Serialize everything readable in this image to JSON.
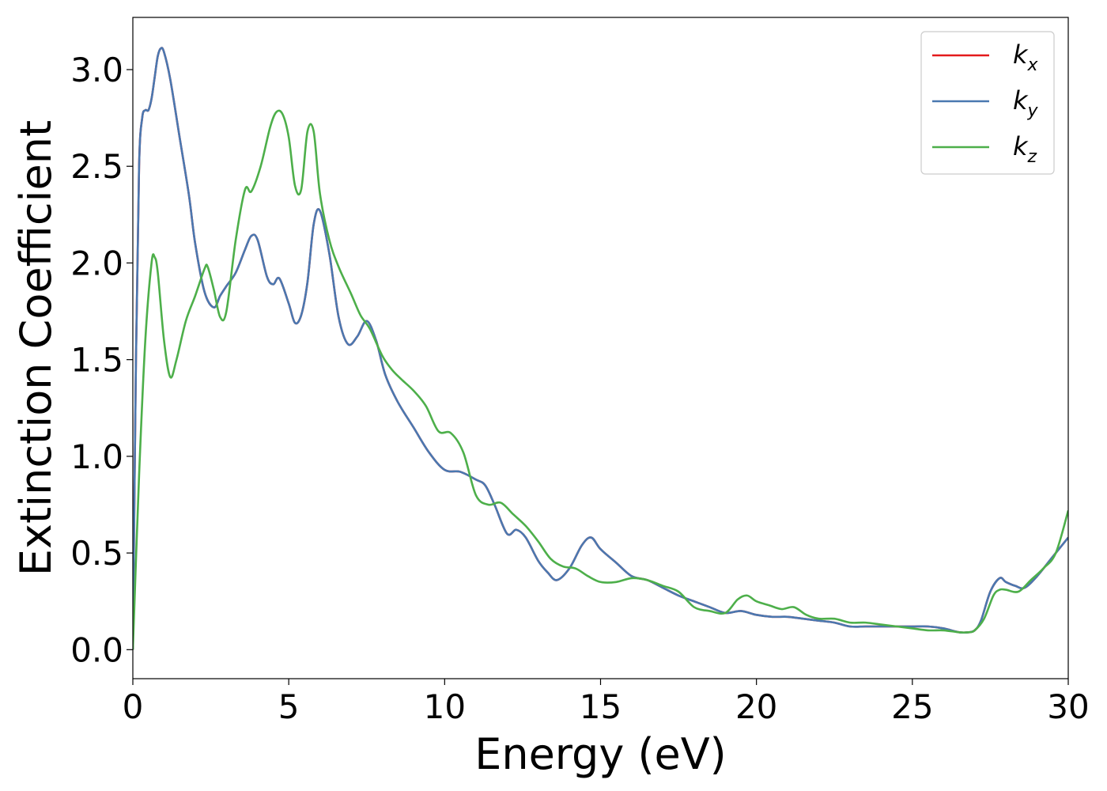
{
  "chart_data": {
    "type": "line",
    "title": "",
    "xlabel": "Energy (eV)",
    "ylabel": "Extinction Coefficient",
    "xlim": [
      0,
      30
    ],
    "ylim": [
      -0.15,
      3.27
    ],
    "xticks": [
      0,
      5,
      10,
      15,
      20,
      25,
      30
    ],
    "xtick_labels": [
      "0",
      "5",
      "10",
      "15",
      "20",
      "25",
      "30"
    ],
    "yticks": [
      0.0,
      0.5,
      1.0,
      1.5,
      2.0,
      2.5,
      3.0
    ],
    "ytick_labels": [
      "0.0",
      "0.5",
      "1.0",
      "1.5",
      "2.0",
      "2.5",
      "3.0"
    ],
    "grid": false,
    "legend_position": "top-right",
    "series": [
      {
        "name": "k_x",
        "label_main": "k",
        "label_sub": "x",
        "color": "#e41a1c",
        "x": [
          0,
          0.1,
          0.2,
          0.3,
          0.4,
          0.5,
          0.6,
          0.7,
          0.8,
          0.9,
          1.0,
          1.2,
          1.5,
          1.8,
          2.0,
          2.3,
          2.6,
          2.8,
          3.0,
          3.3,
          3.6,
          3.8,
          4.0,
          4.3,
          4.5,
          4.7,
          5.0,
          5.2,
          5.4,
          5.6,
          5.8,
          6.0,
          6.3,
          6.6,
          6.9,
          7.2,
          7.5,
          7.8,
          8.1,
          8.5,
          9.0,
          9.5,
          10.0,
          10.5,
          11.0,
          11.3,
          11.6,
          12.0,
          12.3,
          12.6,
          13.0,
          13.3,
          13.6,
          14.0,
          14.4,
          14.7,
          15.0,
          15.5,
          16.0,
          16.5,
          17.0,
          17.5,
          18.0,
          18.5,
          19.0,
          19.5,
          20.0,
          20.5,
          21.0,
          21.5,
          22.0,
          22.5,
          23.0,
          23.5,
          24.0,
          24.5,
          25.0,
          25.5,
          26.0,
          26.5,
          26.8,
          27.0,
          27.2,
          27.5,
          27.8,
          28.0,
          28.3,
          28.6,
          29.0,
          29.5,
          30.0
        ],
        "y": [
          0.0,
          1.5,
          2.5,
          2.75,
          2.79,
          2.79,
          2.85,
          2.96,
          3.07,
          3.11,
          3.09,
          2.95,
          2.65,
          2.35,
          2.1,
          1.85,
          1.77,
          1.83,
          1.88,
          1.95,
          2.07,
          2.14,
          2.12,
          1.93,
          1.89,
          1.92,
          1.79,
          1.69,
          1.73,
          1.9,
          2.2,
          2.27,
          2.05,
          1.72,
          1.58,
          1.62,
          1.7,
          1.6,
          1.42,
          1.28,
          1.15,
          1.02,
          0.93,
          0.92,
          0.88,
          0.85,
          0.75,
          0.6,
          0.62,
          0.58,
          0.46,
          0.4,
          0.36,
          0.42,
          0.54,
          0.58,
          0.52,
          0.45,
          0.38,
          0.36,
          0.32,
          0.28,
          0.25,
          0.22,
          0.19,
          0.2,
          0.18,
          0.17,
          0.17,
          0.16,
          0.15,
          0.14,
          0.12,
          0.12,
          0.12,
          0.12,
          0.12,
          0.12,
          0.11,
          0.09,
          0.09,
          0.1,
          0.15,
          0.3,
          0.37,
          0.35,
          0.33,
          0.32,
          0.38,
          0.48,
          0.58
        ]
      },
      {
        "name": "k_y",
        "label_main": "k",
        "label_sub": "y",
        "color": "#4a78b0",
        "x": [
          0,
          0.1,
          0.2,
          0.3,
          0.4,
          0.5,
          0.6,
          0.7,
          0.8,
          0.9,
          1.0,
          1.2,
          1.5,
          1.8,
          2.0,
          2.3,
          2.6,
          2.8,
          3.0,
          3.3,
          3.6,
          3.8,
          4.0,
          4.3,
          4.5,
          4.7,
          5.0,
          5.2,
          5.4,
          5.6,
          5.8,
          6.0,
          6.3,
          6.6,
          6.9,
          7.2,
          7.5,
          7.8,
          8.1,
          8.5,
          9.0,
          9.5,
          10.0,
          10.5,
          11.0,
          11.3,
          11.6,
          12.0,
          12.3,
          12.6,
          13.0,
          13.3,
          13.6,
          14.0,
          14.4,
          14.7,
          15.0,
          15.5,
          16.0,
          16.5,
          17.0,
          17.5,
          18.0,
          18.5,
          19.0,
          19.5,
          20.0,
          20.5,
          21.0,
          21.5,
          22.0,
          22.5,
          23.0,
          23.5,
          24.0,
          24.5,
          25.0,
          25.5,
          26.0,
          26.5,
          26.8,
          27.0,
          27.2,
          27.5,
          27.8,
          28.0,
          28.3,
          28.6,
          29.0,
          29.5,
          30.0
        ],
        "y": [
          0.0,
          1.5,
          2.5,
          2.75,
          2.79,
          2.79,
          2.85,
          2.96,
          3.07,
          3.11,
          3.09,
          2.95,
          2.65,
          2.35,
          2.1,
          1.85,
          1.77,
          1.83,
          1.88,
          1.95,
          2.07,
          2.14,
          2.12,
          1.93,
          1.89,
          1.92,
          1.79,
          1.69,
          1.73,
          1.9,
          2.2,
          2.27,
          2.05,
          1.72,
          1.58,
          1.62,
          1.7,
          1.6,
          1.42,
          1.28,
          1.15,
          1.02,
          0.93,
          0.92,
          0.88,
          0.85,
          0.75,
          0.6,
          0.62,
          0.58,
          0.46,
          0.4,
          0.36,
          0.42,
          0.54,
          0.58,
          0.52,
          0.45,
          0.38,
          0.36,
          0.32,
          0.28,
          0.25,
          0.22,
          0.19,
          0.2,
          0.18,
          0.17,
          0.17,
          0.16,
          0.15,
          0.14,
          0.12,
          0.12,
          0.12,
          0.12,
          0.12,
          0.12,
          0.11,
          0.09,
          0.09,
          0.1,
          0.15,
          0.3,
          0.37,
          0.35,
          0.33,
          0.32,
          0.38,
          0.48,
          0.58
        ]
      },
      {
        "name": "k_z",
        "label_main": "k",
        "label_sub": "z",
        "color": "#4daf4a",
        "x": [
          0,
          0.2,
          0.4,
          0.6,
          0.7,
          0.8,
          1.0,
          1.2,
          1.4,
          1.7,
          2.0,
          2.3,
          2.4,
          2.6,
          2.8,
          3.0,
          3.3,
          3.6,
          3.8,
          4.1,
          4.4,
          4.6,
          4.8,
          5.0,
          5.2,
          5.4,
          5.6,
          5.8,
          6.0,
          6.3,
          6.6,
          7.0,
          7.3,
          7.6,
          8.0,
          8.3,
          8.6,
          9.0,
          9.4,
          9.8,
          10.2,
          10.6,
          11.0,
          11.4,
          11.8,
          12.2,
          12.6,
          13.0,
          13.4,
          13.8,
          14.2,
          14.6,
          15.0,
          15.5,
          16.0,
          16.5,
          17.0,
          17.5,
          18.0,
          18.5,
          19.0,
          19.4,
          19.7,
          20.0,
          20.4,
          20.8,
          21.2,
          21.6,
          22.0,
          22.5,
          23.0,
          23.5,
          24.0,
          24.5,
          25.0,
          25.5,
          26.0,
          26.5,
          26.8,
          27.0,
          27.3,
          27.6,
          27.8,
          28.0,
          28.4,
          28.8,
          29.2,
          29.6,
          30.0
        ],
        "y": [
          0.0,
          0.9,
          1.6,
          2.0,
          2.03,
          1.95,
          1.6,
          1.41,
          1.5,
          1.7,
          1.83,
          1.97,
          1.98,
          1.86,
          1.72,
          1.75,
          2.12,
          2.38,
          2.37,
          2.5,
          2.7,
          2.78,
          2.77,
          2.65,
          2.4,
          2.38,
          2.68,
          2.68,
          2.36,
          2.12,
          1.98,
          1.84,
          1.73,
          1.66,
          1.52,
          1.45,
          1.4,
          1.34,
          1.26,
          1.13,
          1.12,
          1.02,
          0.8,
          0.75,
          0.76,
          0.7,
          0.64,
          0.56,
          0.47,
          0.43,
          0.42,
          0.38,
          0.35,
          0.35,
          0.37,
          0.36,
          0.33,
          0.3,
          0.22,
          0.2,
          0.19,
          0.26,
          0.28,
          0.25,
          0.23,
          0.21,
          0.22,
          0.18,
          0.16,
          0.16,
          0.14,
          0.14,
          0.13,
          0.12,
          0.11,
          0.1,
          0.1,
          0.09,
          0.09,
          0.1,
          0.16,
          0.28,
          0.31,
          0.31,
          0.3,
          0.36,
          0.42,
          0.5,
          0.72
        ]
      }
    ]
  }
}
